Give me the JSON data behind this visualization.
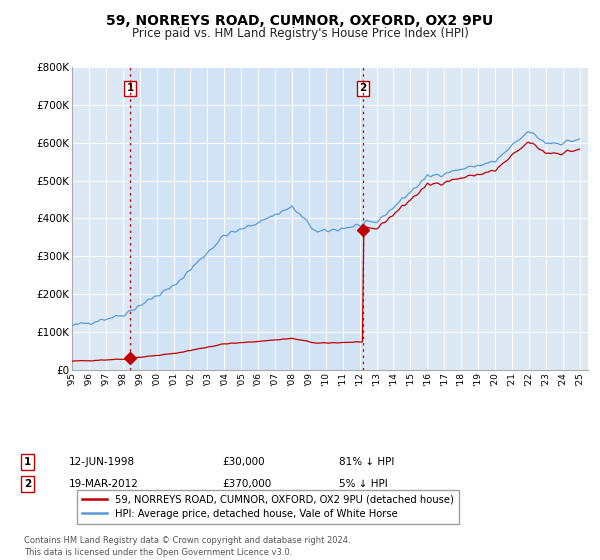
{
  "title": "59, NORREYS ROAD, CUMNOR, OXFORD, OX2 9PU",
  "subtitle": "Price paid vs. HM Land Registry's House Price Index (HPI)",
  "ylim": [
    0,
    800000
  ],
  "yticks": [
    0,
    100000,
    200000,
    300000,
    400000,
    500000,
    600000,
    700000,
    800000
  ],
  "ytick_labels": [
    "£0",
    "£100K",
    "£200K",
    "£300K",
    "£400K",
    "£500K",
    "£600K",
    "£700K",
    "£800K"
  ],
  "background_color": "#ffffff",
  "plot_background": "#dce9f5",
  "grid_color": "#ffffff",
  "legend_label_red": "59, NORREYS ROAD, CUMNOR, OXFORD, OX2 9PU (detached house)",
  "legend_label_blue": "HPI: Average price, detached house, Vale of White Horse",
  "annotation1_date": "12-JUN-1998",
  "annotation1_price": "£30,000",
  "annotation1_pct": "81% ↓ HPI",
  "annotation2_date": "19-MAR-2012",
  "annotation2_price": "£370,000",
  "annotation2_pct": "5% ↓ HPI",
  "footer": "Contains HM Land Registry data © Crown copyright and database right 2024.\nThis data is licensed under the Open Government Licence v3.0.",
  "sale1_x": 1998.44,
  "sale1_y": 30000,
  "sale2_x": 2012.21,
  "sale2_y": 370000,
  "hpi_color": "#5b9bd5",
  "sale_color": "#c00000",
  "vline_color": "#c00000",
  "xlim_start": 1995,
  "xlim_end": 2025.5
}
